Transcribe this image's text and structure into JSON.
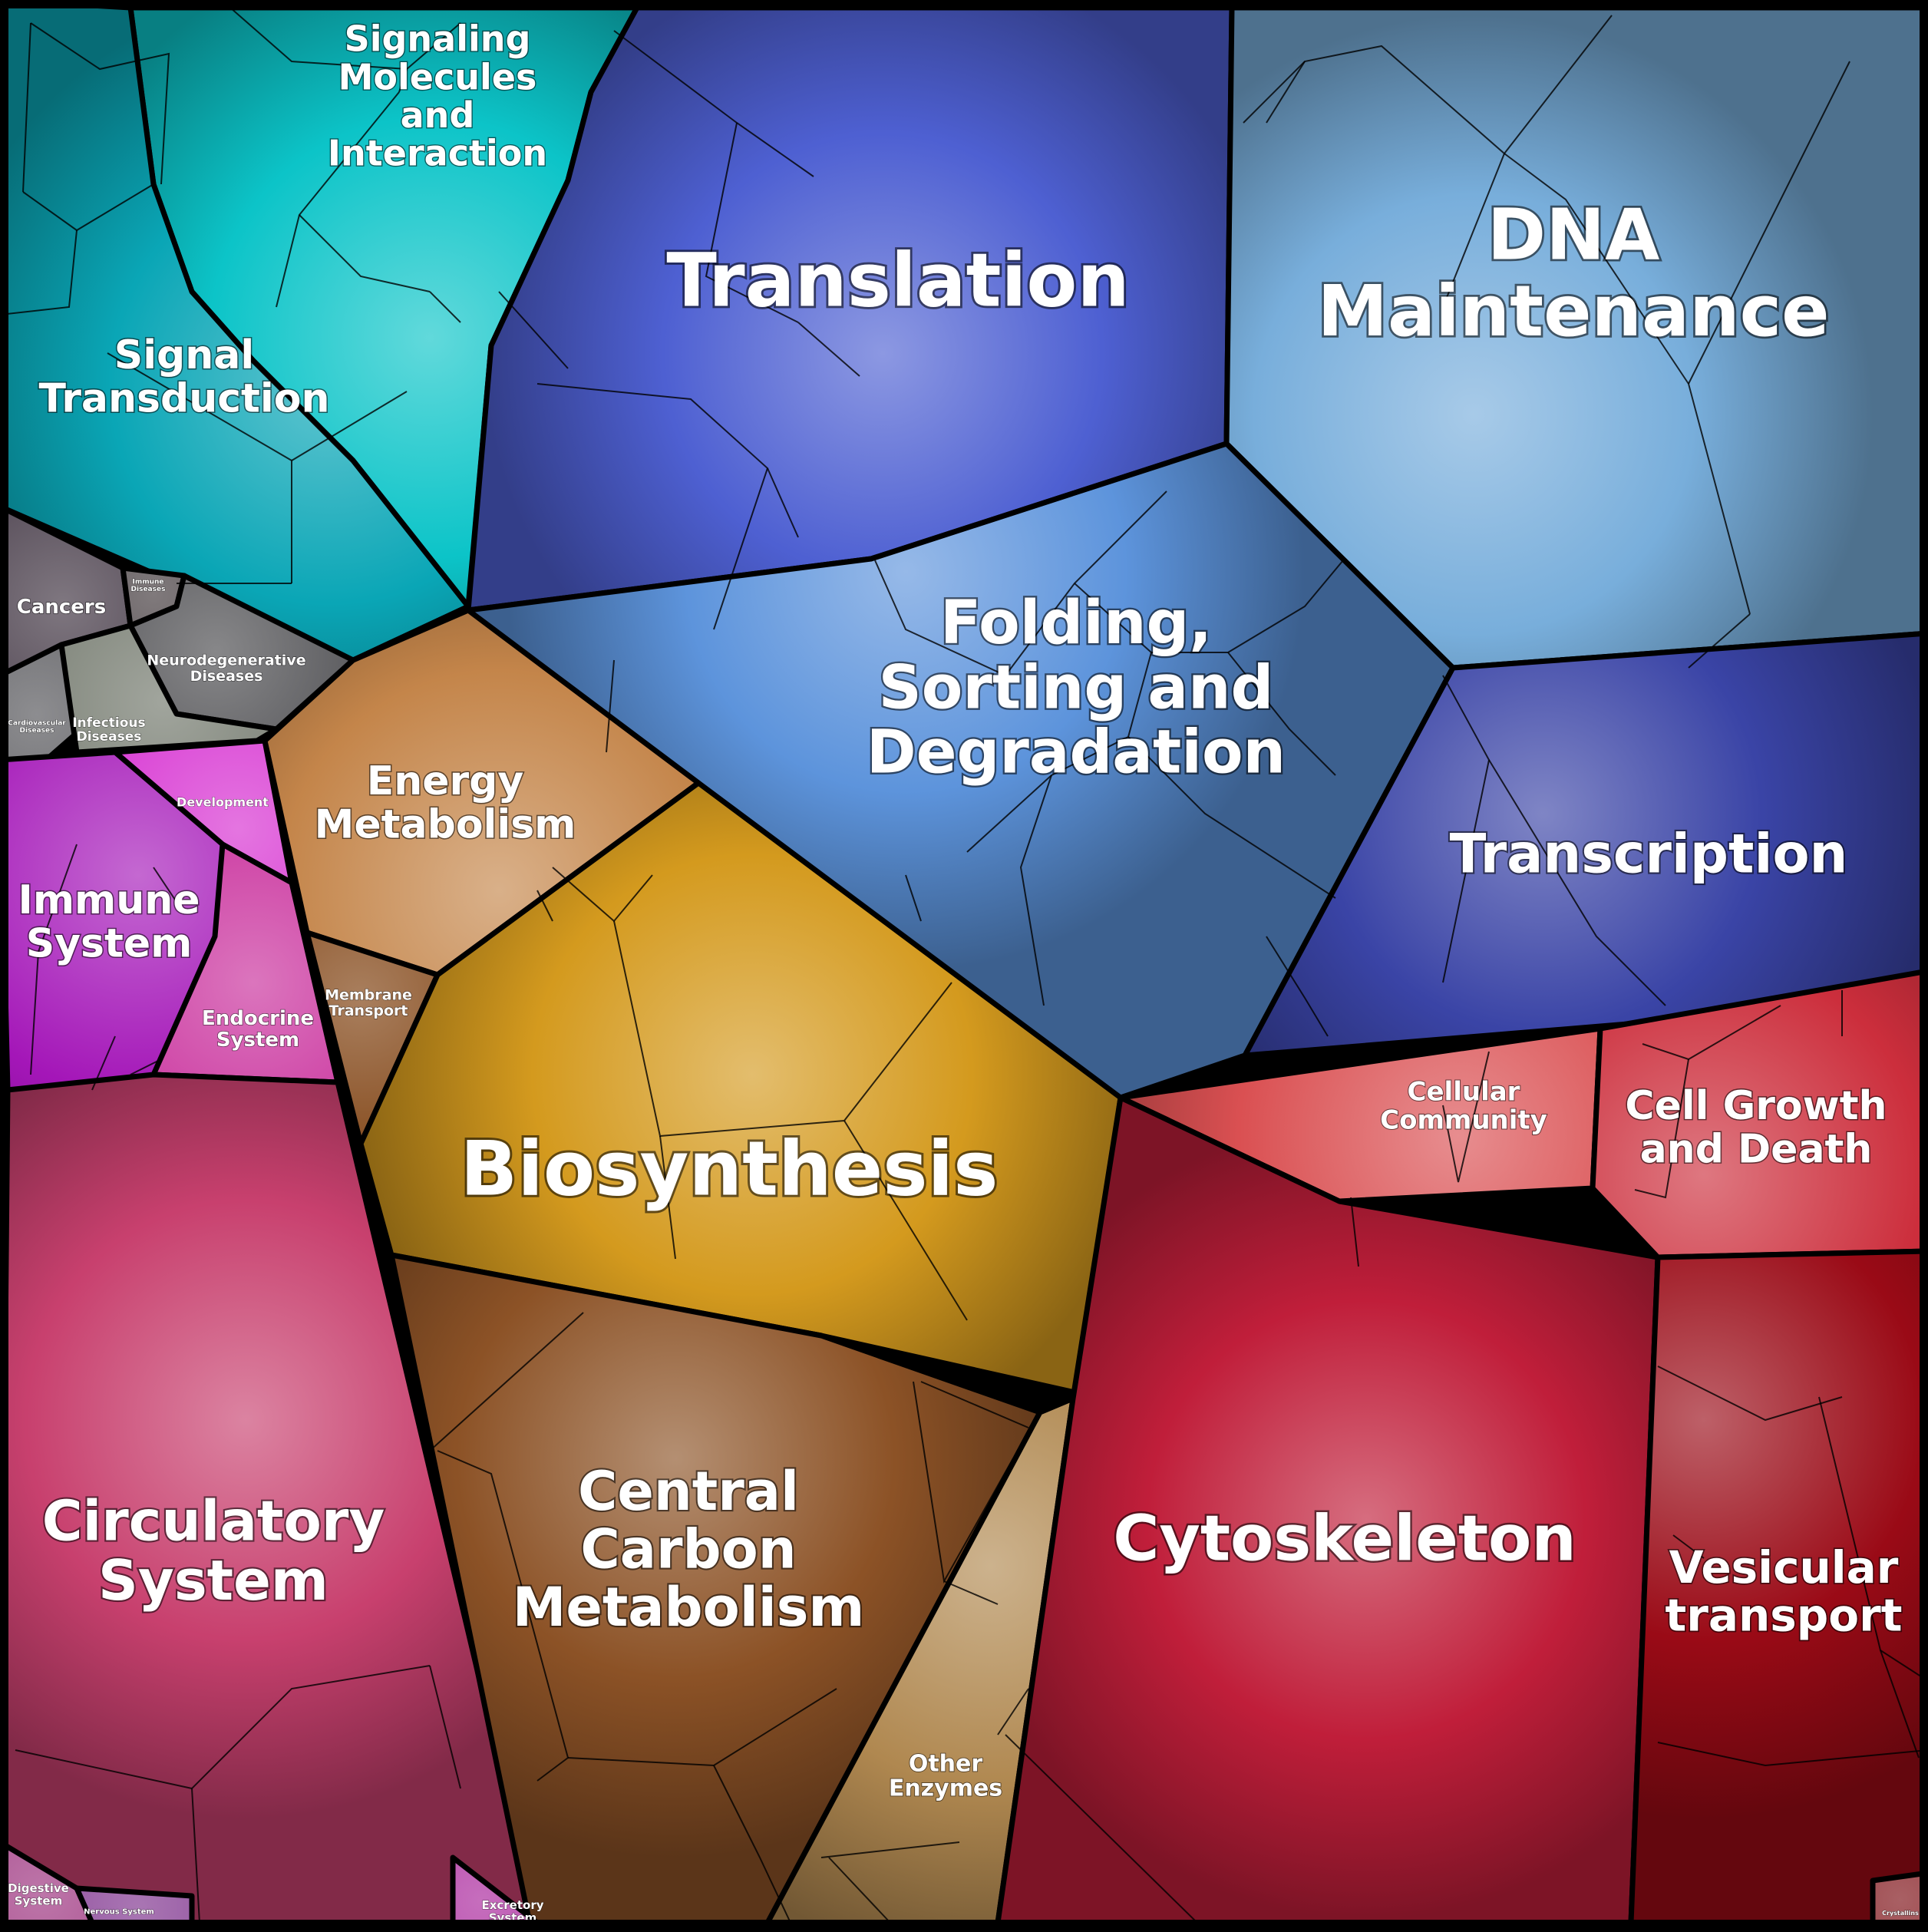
{
  "regions": [
    {
      "id": "signaling-molecules",
      "label": "Signaling\nMolecules\nand\nInteraction",
      "color": "#0cc4c8"
    },
    {
      "id": "signal-transduction",
      "label": "Signal\nTransduction",
      "color": "#0aa6b6"
    },
    {
      "id": "translation",
      "label": "Translation",
      "color": "#4e60d2"
    },
    {
      "id": "dna-maintenance",
      "label": "DNA\nMaintenance",
      "color": "#78aedb"
    },
    {
      "id": "folding-sorting",
      "label": "Folding,\nSorting and\nDegradation",
      "color": "#5d94dc"
    },
    {
      "id": "transcription",
      "label": "Transcription",
      "color": "#3a44a6"
    },
    {
      "id": "cancers",
      "label": "Cancers",
      "color": "#3a2e3c"
    },
    {
      "id": "immune-diseases",
      "label": "Immune\nDiseases",
      "color": "#3b3236"
    },
    {
      "id": "neurodegenerative-diseases",
      "label": "Neurodegenerative\nDiseases",
      "color": "#46464a"
    },
    {
      "id": "cardiovascular-diseases",
      "label": "Cardiovascular\nDiseases",
      "color": "#505054"
    },
    {
      "id": "infectious-diseases",
      "label": "Infectious\nDiseases",
      "color": "#6e7468"
    },
    {
      "id": "development",
      "label": "Development",
      "color": "#d52ad0"
    },
    {
      "id": "immune-system",
      "label": "Immune\nSystem",
      "color": "#a416b8"
    },
    {
      "id": "endocrine-system",
      "label": "Endocrine\nSystem",
      "color": "#c82a9a"
    },
    {
      "id": "energy-metabolism",
      "label": "Energy\nMetabolism",
      "color": "#c4854a"
    },
    {
      "id": "membrane-transport",
      "label": "Membrane\nTransport",
      "color": "#7a3a08"
    },
    {
      "id": "biosynthesis",
      "label": "Biosynthesis",
      "color": "#d49a1e"
    },
    {
      "id": "cellular-community",
      "label": "Cellular\nCommunity",
      "color": "#da5052"
    },
    {
      "id": "cell-growth-death",
      "label": "Cell Growth\nand Death",
      "color": "#cc2e3c"
    },
    {
      "id": "circulatory-system",
      "label": "Circulatory\nSystem",
      "color": "#c8406e"
    },
    {
      "id": "central-carbon-metabolism",
      "label": "Central\nCarbon\nMetabolism",
      "color": "#8c5226"
    },
    {
      "id": "other-enzymes",
      "label": "Other\nEnzymes",
      "color": "#b08850"
    },
    {
      "id": "cytoskeleton",
      "label": "Cytoskeleton",
      "color": "#c01e3a"
    },
    {
      "id": "vesicular-transport",
      "label": "Vesicular\ntransport",
      "color": "#9a0a16"
    },
    {
      "id": "digestive-system",
      "label": "Digestive\nSystem",
      "color": "#9a2c7a"
    },
    {
      "id": "nervous-system",
      "label": "Nervous System",
      "color": "#7a2c8a"
    },
    {
      "id": "excretory-system",
      "label": "Excretory\nSystem",
      "color": "#a8209a"
    },
    {
      "id": "crystallins",
      "label": "Crystallins",
      "color": "#7a0a10"
    }
  ]
}
